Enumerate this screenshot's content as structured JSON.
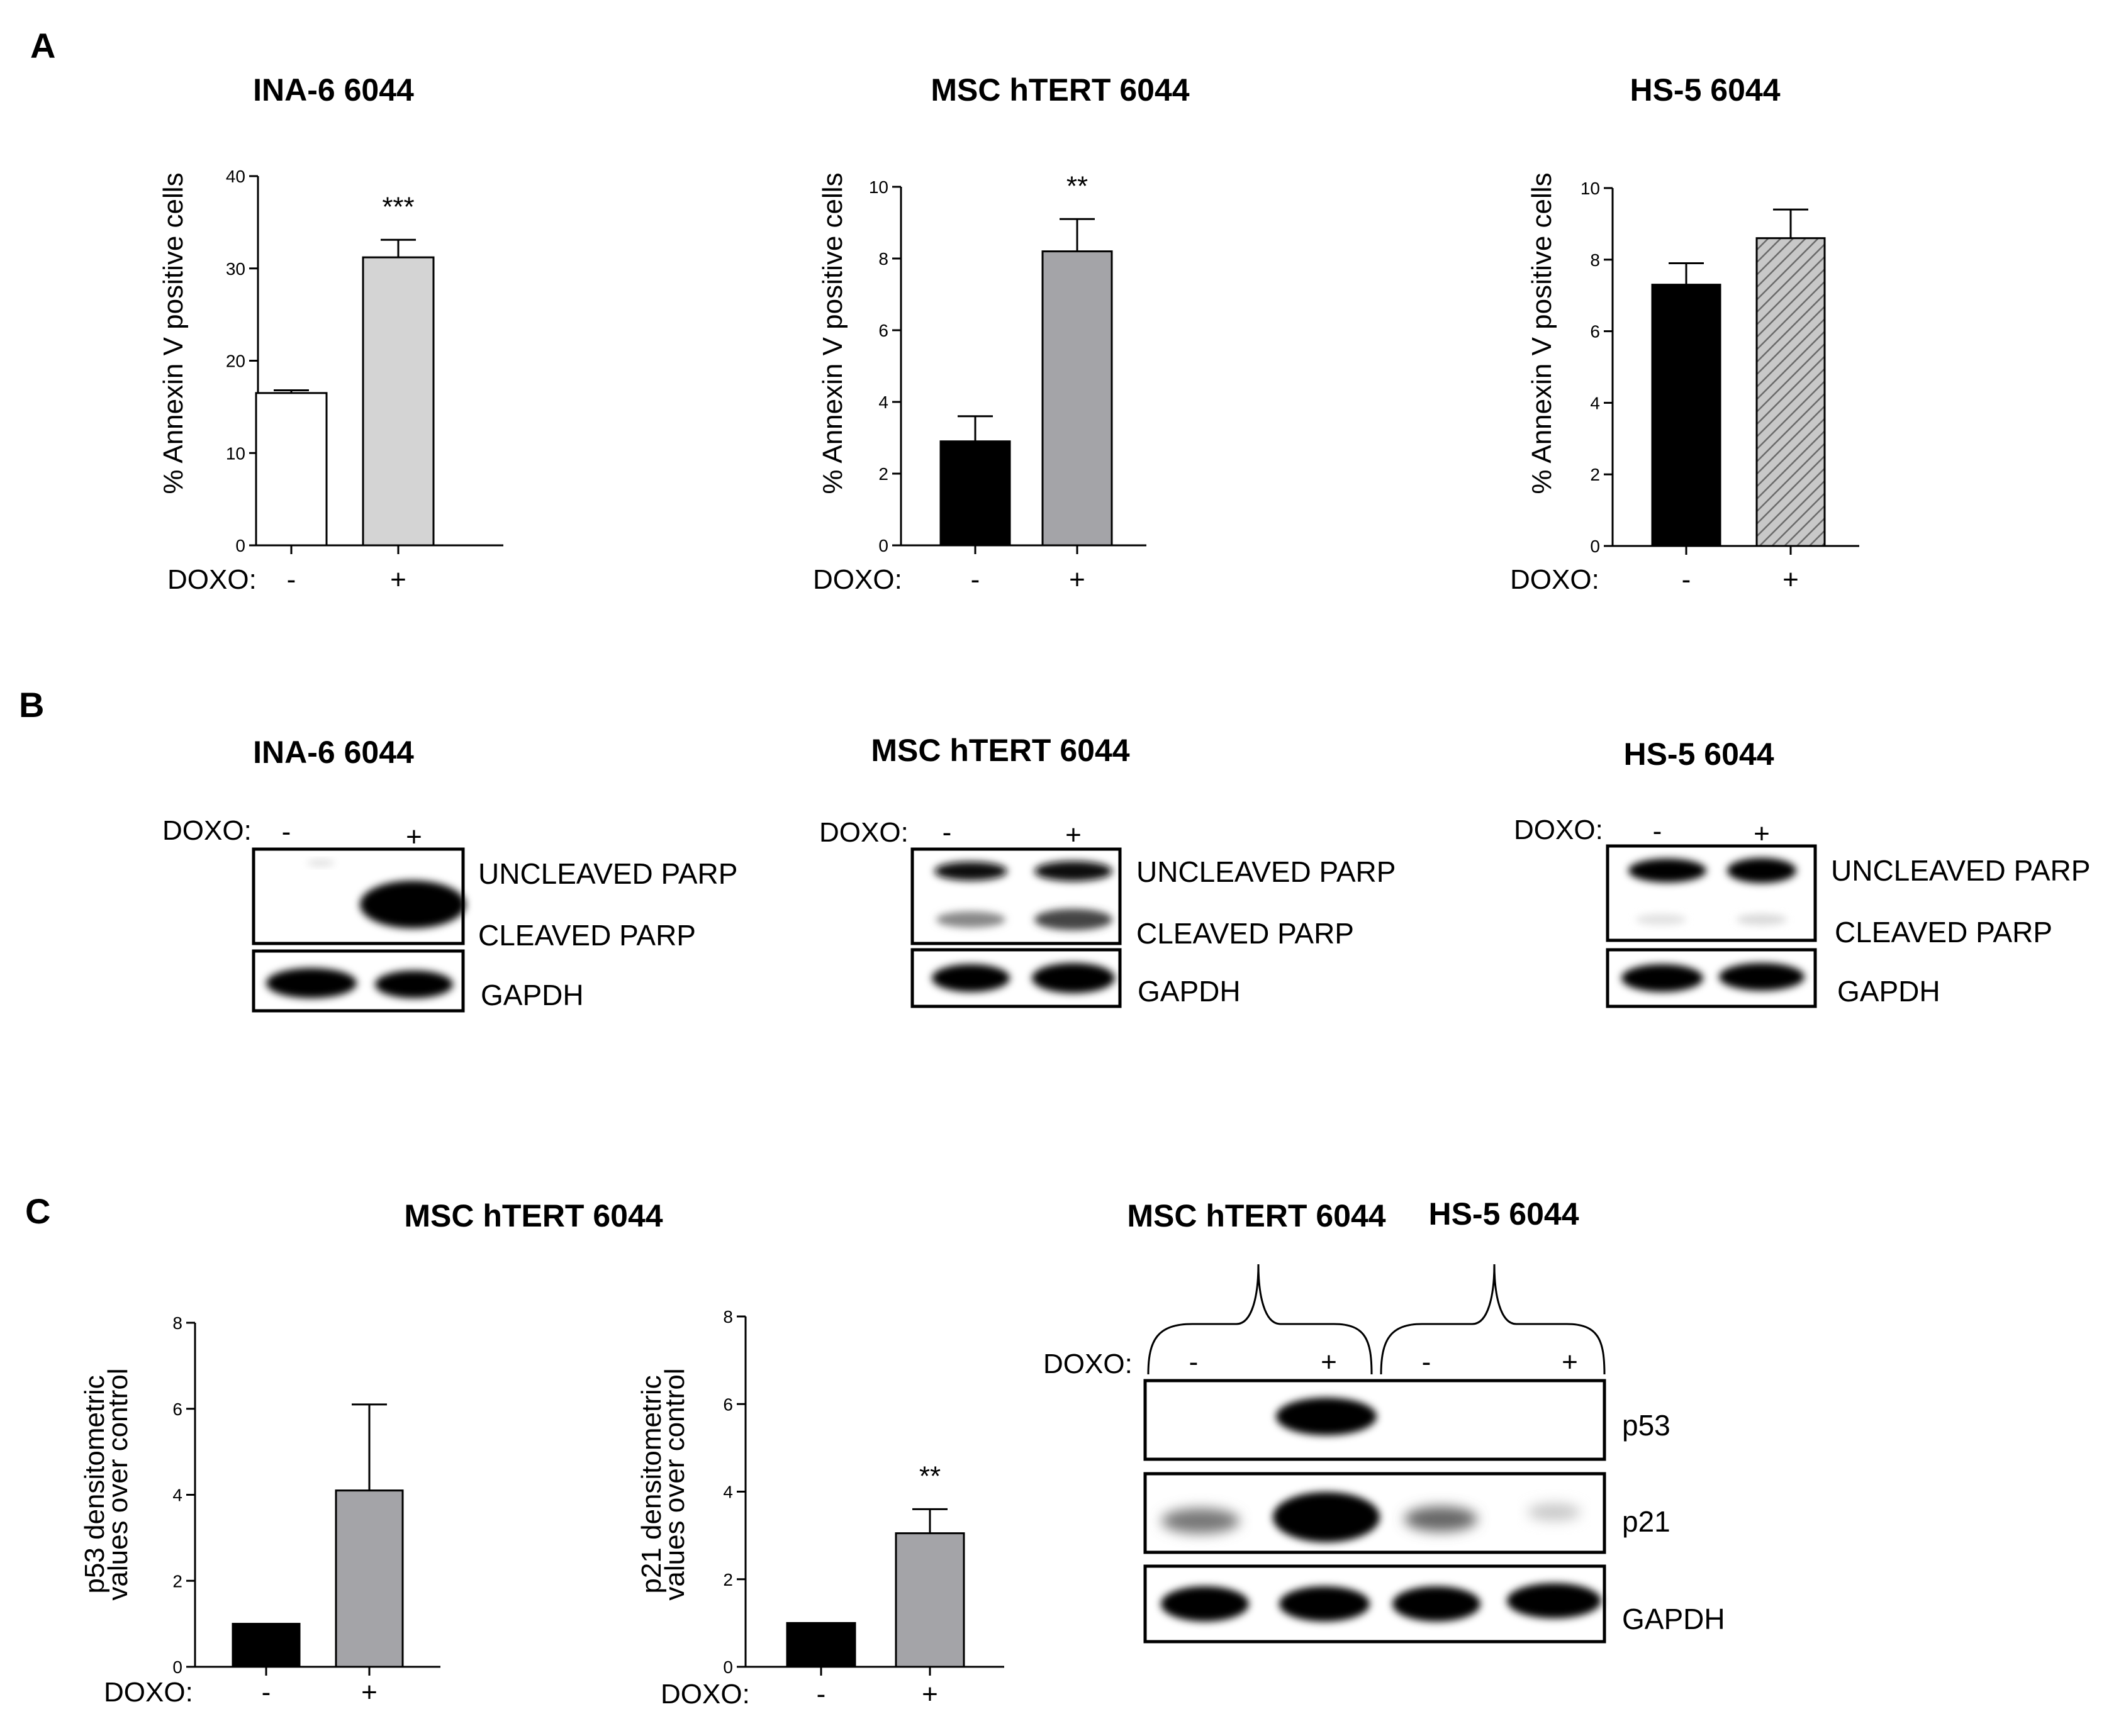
{
  "panels": {
    "a": "A",
    "b": "B",
    "c": "C"
  },
  "colors": {
    "white": "#ffffff",
    "light_gray": "#d4d4d4",
    "gray": "#a4a4a8",
    "black": "#000000",
    "hatch": "#9a9a9a"
  },
  "chart_data": [
    {
      "type": "bar",
      "title": "INA-6 6044",
      "ylabel": "% Annexin V positive cells",
      "xlabel": "DOXO:",
      "categories": [
        "-",
        "+"
      ],
      "values": [
        16.5,
        31.2
      ],
      "errors": [
        0.3,
        1.9
      ],
      "significance": [
        "",
        "***"
      ],
      "ylim": [
        0,
        40
      ],
      "yticks": [
        0,
        10,
        20,
        30,
        40
      ],
      "tick_labels": [
        "0",
        "10",
        "20",
        "30",
        "40"
      ],
      "fills": [
        "white",
        "light_gray"
      ]
    },
    {
      "type": "bar",
      "title": "MSC hTERT 6044",
      "ylabel": "% Annexin V positive cells",
      "xlabel": "DOXO:",
      "categories": [
        "-",
        "+"
      ],
      "values": [
        2.9,
        8.2
      ],
      "errors": [
        0.7,
        0.9
      ],
      "significance": [
        "",
        "**"
      ],
      "ylim": [
        0,
        10
      ],
      "yticks": [
        0,
        2,
        4,
        6,
        8,
        10
      ],
      "tick_labels": [
        "0",
        "2",
        "4",
        "6",
        "8",
        "10"
      ],
      "fills": [
        "black",
        "gray"
      ]
    },
    {
      "type": "bar",
      "title": "HS-5 6044",
      "ylabel": "% Annexin V positive cells",
      "xlabel": "DOXO:",
      "categories": [
        "-",
        "+"
      ],
      "values": [
        7.3,
        8.6
      ],
      "errors": [
        0.6,
        0.8
      ],
      "significance": [
        "",
        ""
      ],
      "ylim": [
        0,
        10
      ],
      "yticks": [
        0,
        2,
        4,
        6,
        8,
        10
      ],
      "tick_labels": [
        "0",
        "2",
        "4",
        "6",
        "8",
        "10"
      ],
      "fills": [
        "black",
        "hatch"
      ]
    },
    {
      "type": "bar",
      "title": "MSC hTERT 6044",
      "ylabel_lines": [
        "p53  densitometric",
        "values over control"
      ],
      "xlabel": "DOXO:",
      "categories": [
        "-",
        "+"
      ],
      "values": [
        1.0,
        4.1
      ],
      "errors": [
        0,
        2.0
      ],
      "significance": [
        "",
        ""
      ],
      "ylim": [
        0,
        8
      ],
      "yticks": [
        0,
        2,
        4,
        6,
        8
      ],
      "tick_labels": [
        "0",
        "2",
        "4",
        "6",
        "8"
      ],
      "fills": [
        "black",
        "gray"
      ]
    },
    {
      "type": "bar",
      "ylabel_lines": [
        "p21  densitometric",
        "values over control"
      ],
      "xlabel": "DOXO:",
      "categories": [
        "-",
        "+"
      ],
      "values": [
        1.0,
        3.05
      ],
      "errors": [
        0,
        0.55
      ],
      "significance": [
        "",
        "**"
      ],
      "ylim": [
        0,
        8
      ],
      "yticks": [
        0,
        2,
        4,
        6,
        8
      ],
      "tick_labels": [
        "0",
        "2",
        "4",
        "6",
        "8"
      ],
      "fills": [
        "black",
        "gray"
      ]
    }
  ],
  "blots_b": [
    {
      "title": "INA-6 6044",
      "doxo_label": "DOXO:",
      "lanes": [
        "-",
        "+"
      ],
      "rows": [
        "UNCLEAVED PARP",
        "CLEAVED PARP",
        "GAPDH"
      ]
    },
    {
      "title": "MSC hTERT 6044",
      "doxo_label": "DOXO:",
      "lanes": [
        "-",
        "+"
      ],
      "rows": [
        "UNCLEAVED PARP",
        "CLEAVED PARP",
        "GAPDH"
      ]
    },
    {
      "title": "HS-5 6044",
      "doxo_label": "DOXO:",
      "lanes": [
        "-",
        "+"
      ],
      "rows": [
        "UNCLEAVED PARP",
        "CLEAVED PARP",
        "GAPDH"
      ]
    }
  ],
  "blot_c": {
    "group_titles": [
      "MSC hTERT 6044",
      "HS-5 6044"
    ],
    "doxo_label": "DOXO:",
    "lanes": [
      "-",
      "+",
      "-",
      "+"
    ],
    "rows": [
      "p53",
      "p21",
      "GAPDH"
    ]
  }
}
